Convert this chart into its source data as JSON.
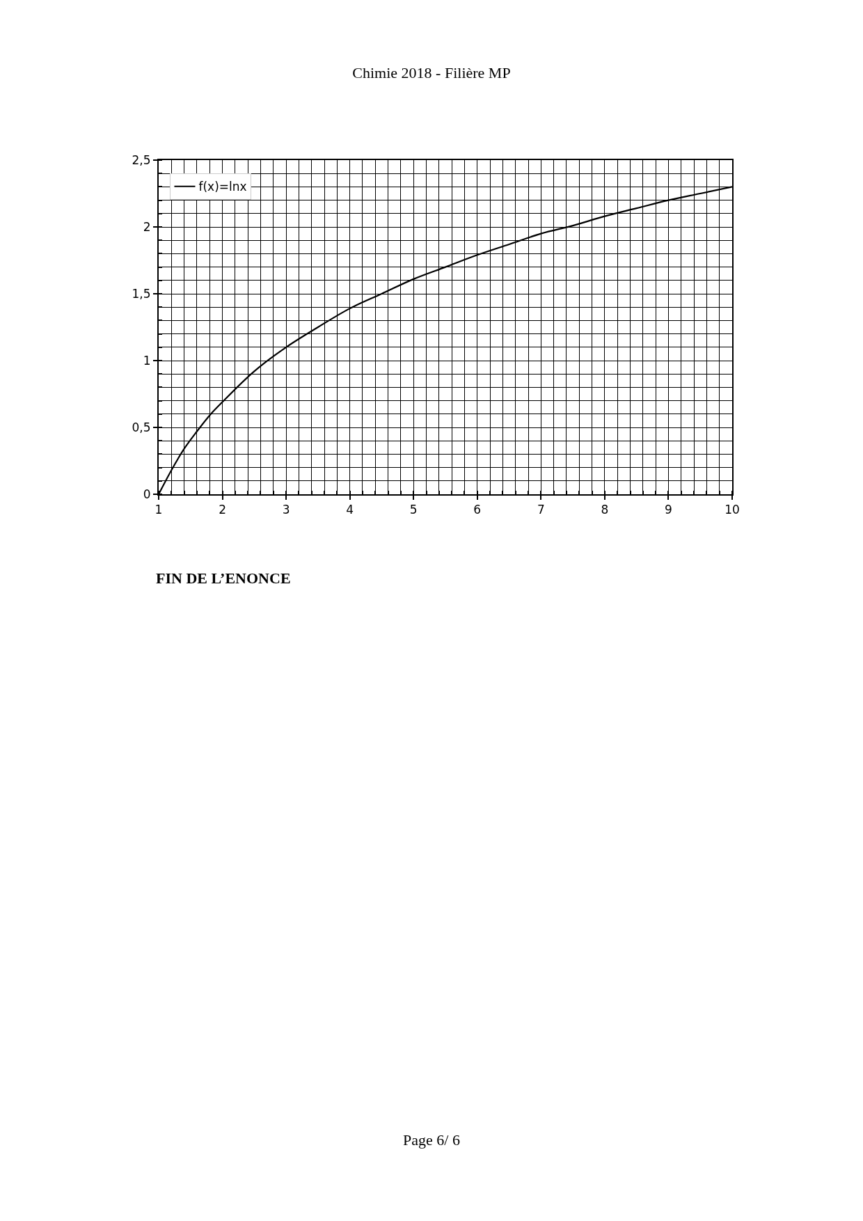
{
  "chart_data": {
    "type": "line",
    "annotations": [
      "Chimie 2018 - Filière MP",
      "FIN DE L’ENONCE",
      "Page 6/ 6"
    ],
    "x": [
      1,
      1.2,
      1.4,
      1.6,
      1.8,
      2,
      2.5,
      3,
      3.5,
      4,
      4.5,
      5,
      5.5,
      6,
      6.5,
      7,
      7.5,
      8,
      8.5,
      9,
      9.5,
      10
    ],
    "series": [
      {
        "name": "f(x)=lnx",
        "color": "#000000",
        "values": [
          0,
          0.18,
          0.34,
          0.47,
          0.59,
          0.69,
          0.92,
          1.1,
          1.25,
          1.39,
          1.5,
          1.61,
          1.7,
          1.79,
          1.87,
          1.95,
          2.01,
          2.08,
          2.14,
          2.2,
          2.25,
          2.3
        ]
      }
    ],
    "xlim": [
      1,
      10
    ],
    "xticks": [
      1,
      2,
      3,
      4,
      5,
      6,
      7,
      8,
      9,
      10
    ],
    "ylim": [
      0,
      2.5
    ],
    "yticks": [
      0,
      {
        "value": 0.5,
        "label": "0,5"
      },
      1,
      {
        "value": 1.5,
        "label": "1,5"
      },
      2,
      {
        "value": 2.5,
        "label": "2,5"
      }
    ],
    "grid": true,
    "legend": "top left",
    "marker": "none",
    "line_style": "solid"
  }
}
